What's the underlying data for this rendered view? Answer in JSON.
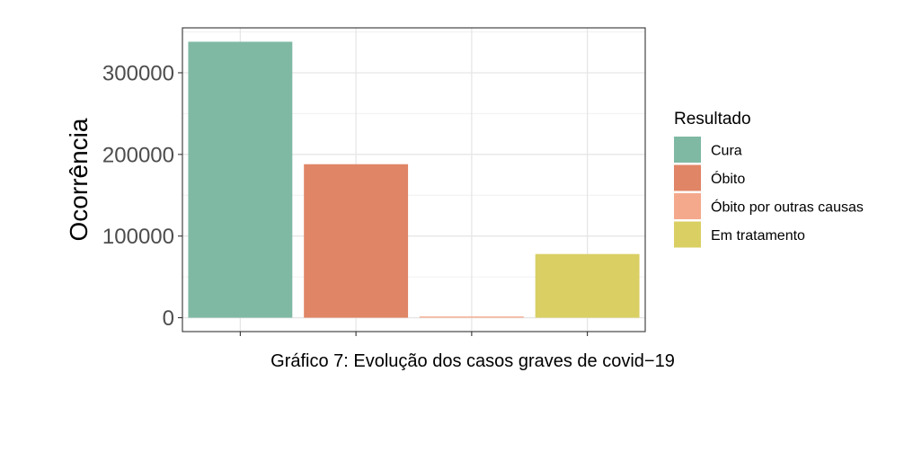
{
  "chart_data": {
    "type": "bar",
    "categories": [
      "Cura",
      "Óbito",
      "Óbito por outras causas",
      "Em tratamento"
    ],
    "values": [
      338000,
      188000,
      1500,
      78000
    ],
    "colors": [
      "#7fb9a4",
      "#e08566",
      "#f4a98c",
      "#d9cf63"
    ],
    "ylabel": "Ocorrência",
    "xlabel": "",
    "caption": "Gráfico 7: Evolução dos casos graves de covid−19",
    "ylim": [
      -17000,
      355000
    ],
    "yticks": [
      0,
      100000,
      200000,
      300000
    ],
    "ytick_labels": [
      "0",
      "100000",
      "200000",
      "300000"
    ],
    "grid": true,
    "legend": {
      "title": "Resultado",
      "position": "right",
      "items": [
        "Cura",
        "Óbito",
        "Óbito por outras causas",
        "Em tratamento"
      ]
    }
  }
}
